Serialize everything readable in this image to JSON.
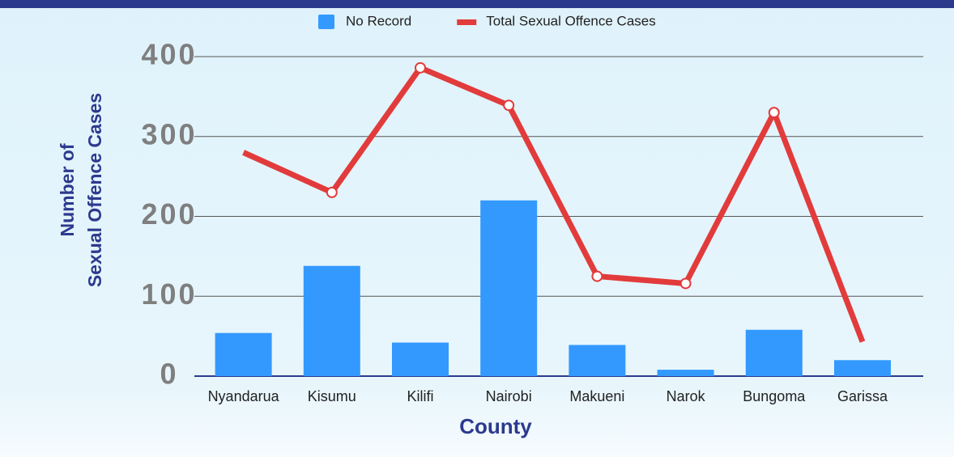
{
  "chart_data": {
    "type": "bar_line",
    "categories": [
      "Nyandarua",
      "Kisumu",
      "Kilifi",
      "Nairobi",
      "Makueni",
      "Narok",
      "Bungoma",
      "Garissa"
    ],
    "series": [
      {
        "name": "No Record",
        "type": "bar",
        "color": "#3399ff",
        "values": [
          54,
          138,
          42,
          220,
          39,
          8,
          58,
          20
        ]
      },
      {
        "name": "Total Sexual Offence Cases",
        "type": "line",
        "color": "#e23b3b",
        "values": [
          280,
          230,
          386,
          339,
          125,
          116,
          330,
          43
        ]
      }
    ],
    "x_label": "County",
    "y_label": [
      "Number of",
      "Sexual Offence Cases"
    ],
    "ylim": [
      0,
      400
    ],
    "yticks": [
      0,
      100,
      200,
      300,
      400
    ],
    "grid": true,
    "legend": "top"
  }
}
